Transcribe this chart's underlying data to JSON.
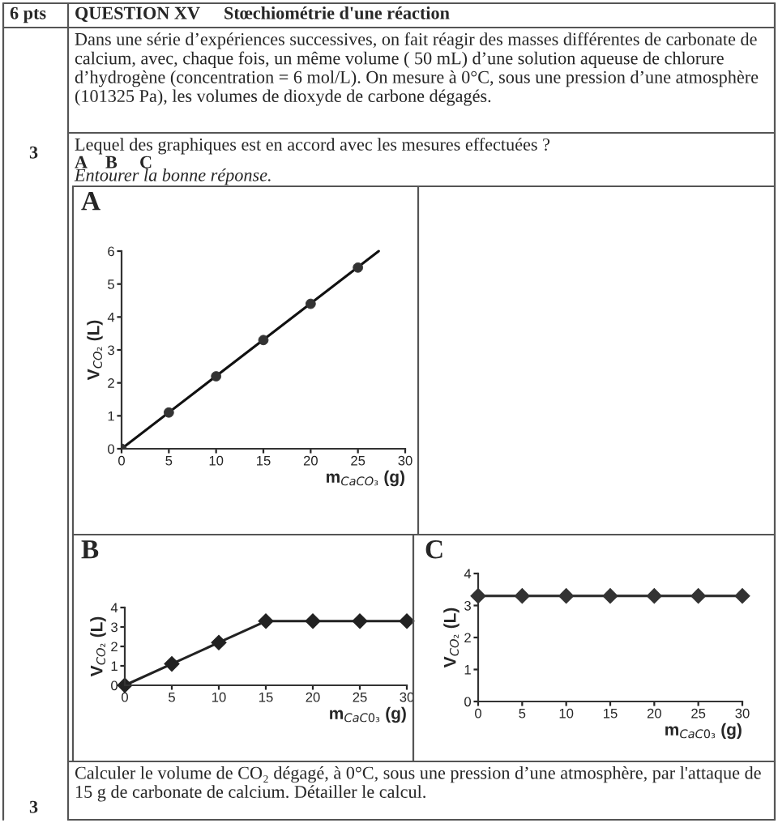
{
  "chart_data": [
    {
      "type": "other",
      "annotations": [
        "6 pts",
        "QUESTION XV",
        "Stœchiométrie d'une réaction",
        "Dans une série d’expériences successives, on fait réagir des masses différentes de carbonate de calcium, avec, chaque fois, un même volume ( 50 mL) d’une solution aqueuse de chlorure d’hydrogène (concentration = 6 mol/L). On mesure à 0°C, sous une pression d’une atmosphère (101325 Pa), les volumes de dioxyde de carbone dégagés.",
        "3",
        "Lequel des graphiques est en accord avec les mesures effectuées ?",
        "A",
        "B",
        "C",
        "Entourer la bonne réponse.",
        "Calculer le volume de CO₂ dégagé, à 0°C, sous une pression d’une atmosphère, par l'attaque de 15 g de carbonate de calcium. Détailler le calcul.",
        "3"
      ]
    },
    {
      "type": "scatter",
      "title": "A",
      "xlabel": "m$_{CaCO₃}$ (g)",
      "ylabel": "V$_{CO₂}$ (L)",
      "xlim": [
        0,
        30
      ],
      "xticks": [
        0,
        5,
        10,
        15,
        20,
        25,
        30
      ],
      "ylim": [
        0,
        6
      ],
      "yticks": [
        0,
        1,
        2,
        3,
        4,
        5,
        6
      ],
      "grid": false,
      "series": [
        {
          "type": "scatter",
          "marker": "circle",
          "color": "#333333",
          "x": [
            0,
            5,
            10,
            15,
            20,
            25
          ],
          "values": [
            0,
            1.1,
            2.2,
            3.3,
            4.4,
            5.5
          ]
        },
        {
          "type": "line",
          "marker": "none",
          "color": "#111111",
          "x": [
            0,
            27.2
          ],
          "values": [
            0,
            6.0
          ]
        }
      ]
    },
    {
      "type": "line",
      "title": "B",
      "xlabel": "m$_{CaC0₃}$ (g)",
      "ylabel": "V$_{CO₂}$ (L)",
      "marker": "diamond",
      "line_style": "solid",
      "xlim": [
        0,
        30
      ],
      "xticks": [
        0,
        5,
        10,
        15,
        20,
        25,
        30
      ],
      "ylim": [
        0,
        4
      ],
      "yticks": [
        0,
        1,
        2,
        3,
        4
      ],
      "grid": false,
      "series": [
        {
          "color": "#222222",
          "x": [
            0,
            5,
            10,
            15,
            20,
            25,
            30
          ],
          "values": [
            0,
            1.1,
            2.2,
            3.3,
            3.3,
            3.3,
            3.3
          ]
        }
      ]
    },
    {
      "type": "line",
      "title": "C",
      "xlabel": "m$_{CaC0₃}$ (g)",
      "ylabel": "V$_{CO₂}$ (L)",
      "marker": "diamond",
      "line_style": "solid",
      "xlim": [
        0,
        30
      ],
      "xticks": [
        0,
        5,
        10,
        15,
        20,
        25,
        30
      ],
      "ylim": [
        0,
        4
      ],
      "yticks": [
        0,
        1,
        2,
        3,
        4
      ],
      "grid": false,
      "series": [
        {
          "color": "#333333",
          "x": [
            0,
            5,
            10,
            15,
            20,
            25,
            30
          ],
          "values": [
            3.3,
            3.3,
            3.3,
            3.3,
            3.3,
            3.3,
            3.3
          ]
        }
      ]
    }
  ]
}
